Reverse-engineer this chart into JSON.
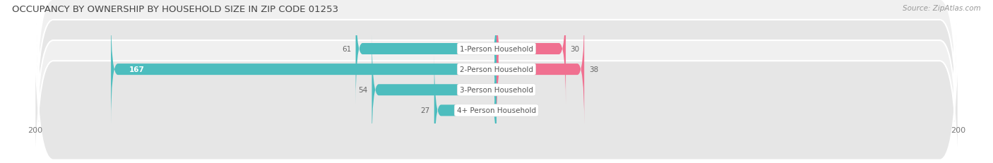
{
  "title": "OCCUPANCY BY OWNERSHIP BY HOUSEHOLD SIZE IN ZIP CODE 01253",
  "source": "Source: ZipAtlas.com",
  "categories": [
    "1-Person Household",
    "2-Person Household",
    "3-Person Household",
    "4+ Person Household"
  ],
  "owner_values": [
    61,
    167,
    54,
    27
  ],
  "renter_values": [
    30,
    38,
    0,
    0
  ],
  "owner_color": "#4dbdbe",
  "renter_color": "#f07090",
  "row_bg_color_light": "#f0f0f0",
  "row_bg_color_dark": "#e6e6e6",
  "axis_max": 200,
  "axis_min": -200,
  "title_fontsize": 9.5,
  "source_fontsize": 7.5,
  "bar_fontsize": 7.5,
  "legend_fontsize": 8,
  "tick_fontsize": 8
}
